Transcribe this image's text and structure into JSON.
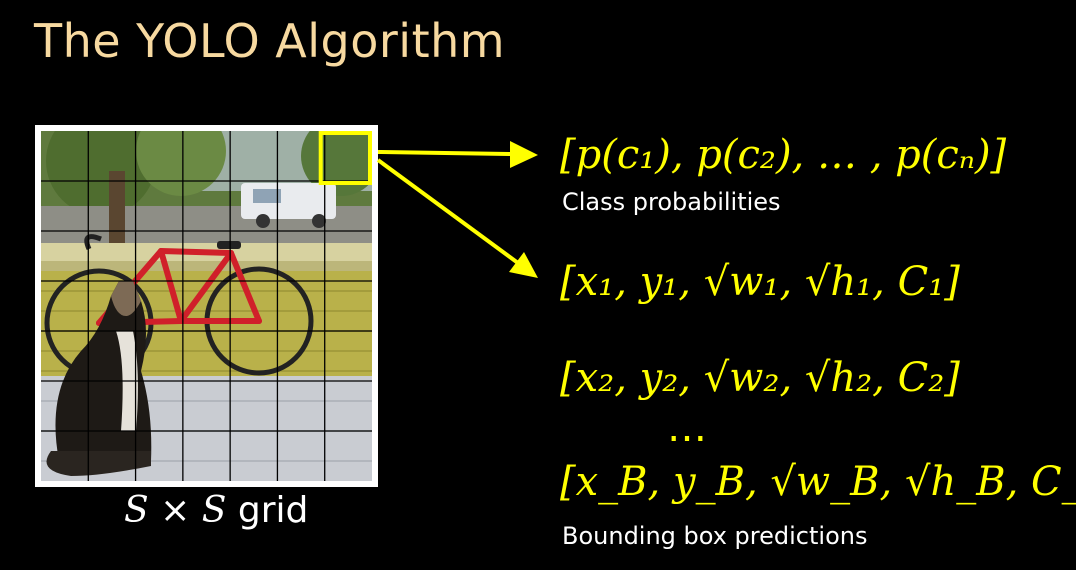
{
  "title": "The YOLO Algorithm",
  "grid_label": {
    "s1": "S",
    "times": "×",
    "s2": "S",
    "word": "grid"
  },
  "class_prob_formula": "[p(c₁), p(c₂), … , p(cₙ)]",
  "class_prob_caption": "Class probabilities",
  "bbox_formulas": [
    "[x₁, y₁, √w₁, √h₁, C₁]",
    "[x₂, y₂, √w₂, √h₂, C₂]",
    "[x_B, y_B, √w_B, √h_B, C_B]"
  ],
  "ellipsis": "…",
  "bbox_caption": "Bounding box predictions",
  "grid": {
    "cols": 7,
    "rows": 7,
    "highlight_col": 6,
    "highlight_row": 0
  },
  "colors": {
    "title": "#f7d9a0",
    "accent": "#ffff00",
    "text": "#ffffff",
    "background": "#000000"
  }
}
